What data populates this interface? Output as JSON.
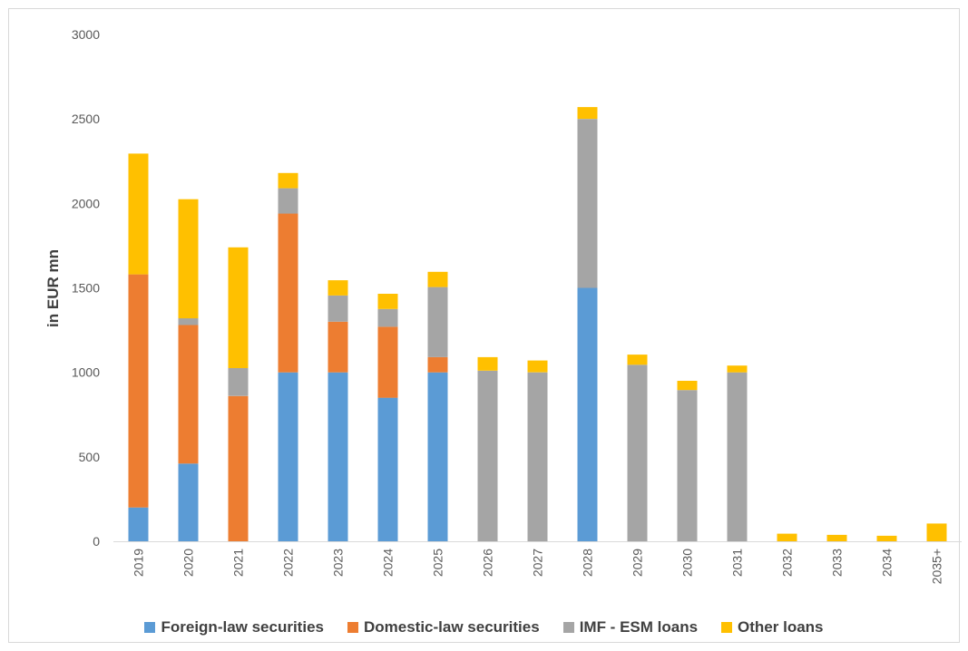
{
  "chart_data": {
    "type": "bar",
    "stacked": true,
    "ylabel": "in EUR mn",
    "ylim": [
      0,
      3000
    ],
    "yticks": [
      0,
      500,
      1000,
      1500,
      2000,
      2500,
      3000
    ],
    "ytick_labels": [
      "0",
      "500",
      "1000",
      "1500",
      "2000",
      "2500",
      "3000"
    ],
    "grid": false,
    "legend_position": "bottom",
    "categories": [
      "2019",
      "2020",
      "2021",
      "2022",
      "2023",
      "2024",
      "2025",
      "2026",
      "2027",
      "2028",
      "2029",
      "2030",
      "2031",
      "2032",
      "2033",
      "2034",
      "2035+"
    ],
    "series": [
      {
        "name": "Foreign-law securities",
        "color": "#5B9BD5",
        "values": [
          200,
          460,
          0,
          1000,
          1000,
          850,
          1000,
          0,
          0,
          1500,
          0,
          0,
          0,
          0,
          0,
          0,
          0
        ]
      },
      {
        "name": "Domestic-law securities",
        "color": "#ED7D31",
        "values": [
          1380,
          820,
          860,
          940,
          300,
          420,
          90,
          0,
          0,
          0,
          0,
          0,
          0,
          0,
          0,
          0,
          0
        ]
      },
      {
        "name": "IMF - ESM loans",
        "color": "#A5A5A5",
        "values": [
          0,
          40,
          165,
          150,
          155,
          105,
          415,
          1010,
          1000,
          1000,
          1045,
          895,
          1000,
          0,
          0,
          0,
          0
        ]
      },
      {
        "name": "Other loans",
        "color": "#FFC000",
        "values": [
          715,
          705,
          715,
          90,
          90,
          90,
          90,
          80,
          70,
          70,
          60,
          55,
          40,
          45,
          38,
          33,
          105
        ]
      }
    ]
  }
}
